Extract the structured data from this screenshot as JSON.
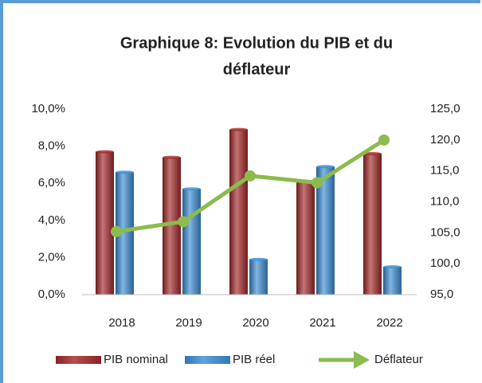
{
  "chart_data": {
    "type": "bar_line",
    "title": [
      "Graphique 8: Evolution du PIB et du",
      "déflateur"
    ],
    "categories": [
      "2018",
      "2019",
      "2020",
      "2021",
      "2022"
    ],
    "series": [
      {
        "name": "PIB nominal",
        "type": "bar",
        "color": "#a52a2a",
        "values": [
          7.7,
          7.4,
          8.9,
          6.1,
          7.6
        ]
      },
      {
        "name": "PIB réel",
        "type": "bar",
        "color": "#3d8fd6",
        "values": [
          6.6,
          5.7,
          1.9,
          6.9,
          1.5
        ]
      },
      {
        "name": "Déflateur",
        "type": "line",
        "axis": "y2",
        "color": "#8cbb4e",
        "values": [
          105.2,
          106.8,
          114.2,
          113.1,
          120.0
        ]
      }
    ],
    "ylim": [
      0,
      10
    ],
    "yticks": [
      {
        "value": 0,
        "label": "0,0%"
      },
      {
        "value": 2,
        "label": "2,0%"
      },
      {
        "value": 4,
        "label": "4,0%"
      },
      {
        "value": 6,
        "label": "6,0%"
      },
      {
        "value": 8,
        "label": "8,0%"
      },
      {
        "value": 10,
        "label": "10,0%"
      }
    ],
    "y2lim": [
      95,
      125
    ],
    "y2ticks": [
      {
        "value": 95,
        "label": "95,0"
      },
      {
        "value": 100,
        "label": "100,0"
      },
      {
        "value": 105,
        "label": "105,0"
      },
      {
        "value": 110,
        "label": "110,0"
      },
      {
        "value": 115,
        "label": "115,0"
      },
      {
        "value": 120,
        "label": "120,0"
      },
      {
        "value": 125,
        "label": "125,0"
      }
    ],
    "legend": "bottom"
  }
}
